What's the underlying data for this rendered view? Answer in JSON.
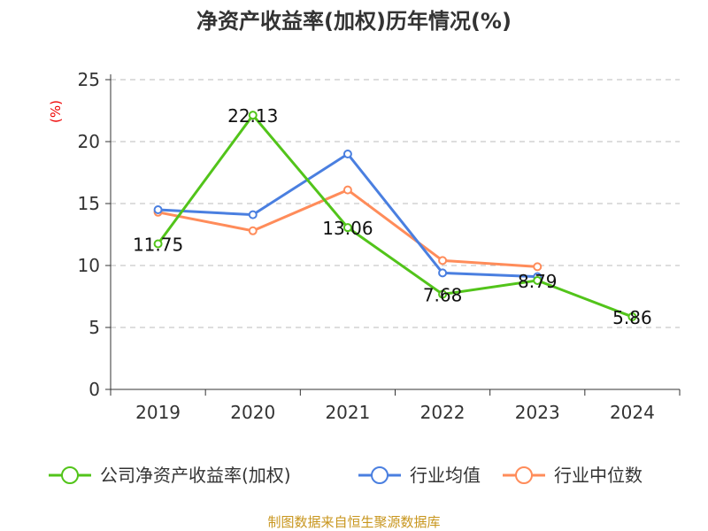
{
  "chart_data": {
    "type": "line",
    "title": "净资产收益率(加权)历年情况(%)",
    "ylabel": "(%)",
    "categories": [
      "2019",
      "2020",
      "2021",
      "2022",
      "2023",
      "2024"
    ],
    "ylim": [
      0,
      25
    ],
    "yticks": [
      0,
      5,
      10,
      15,
      20,
      25
    ],
    "grid": true,
    "legend_position": "bottom",
    "series": [
      {
        "name": "公司净资产收益率(加权)",
        "color": "#52c41a",
        "values": [
          11.75,
          22.13,
          13.06,
          7.68,
          8.79,
          5.86
        ],
        "labels": [
          "11.75",
          "22.13",
          "13.06",
          "7.68",
          "8.79",
          "5.86"
        ]
      },
      {
        "name": "行业均值",
        "color": "#4a7fe0",
        "values": [
          14.5,
          14.1,
          19.0,
          9.4,
          9.1,
          null
        ]
      },
      {
        "name": "行业中位数",
        "color": "#ff8c5a",
        "values": [
          14.3,
          12.8,
          16.1,
          10.4,
          9.9,
          null
        ]
      }
    ],
    "source": "制图数据来自恒生聚源数据库"
  }
}
